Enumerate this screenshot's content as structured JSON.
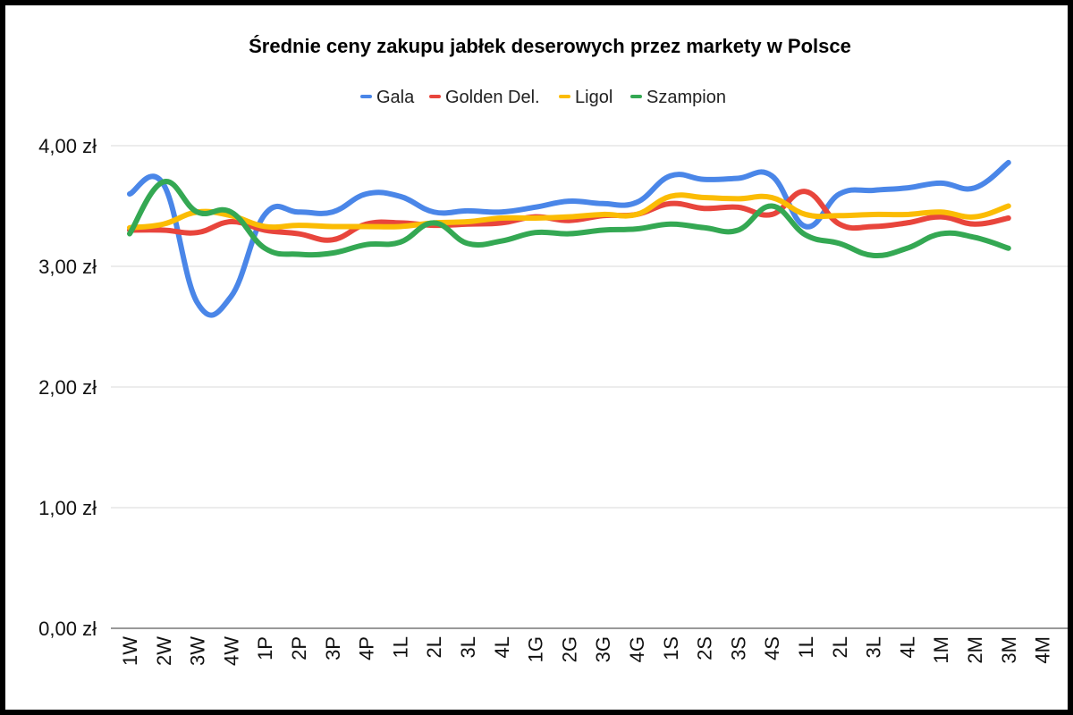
{
  "chart_data": {
    "type": "line",
    "title": "Średnie ceny zakupu jabłek deserowych przez markety w Polsce",
    "xlabel": "",
    "ylabel": "",
    "ylim": [
      0,
      4
    ],
    "yticks": [
      {
        "value": 0,
        "label": "0,00 zł"
      },
      {
        "value": 1,
        "label": "1,00 zł"
      },
      {
        "value": 2,
        "label": "2,00 zł"
      },
      {
        "value": 3,
        "label": "3,00 zł"
      },
      {
        "value": 4,
        "label": "4,00 zł"
      }
    ],
    "grid": true,
    "legend_position": "top",
    "categories": [
      "1W",
      "2W",
      "3W",
      "4W",
      "1P",
      "2P",
      "3P",
      "4P",
      "1L",
      "2L",
      "3L",
      "4L",
      "1G",
      "2G",
      "3G",
      "4G",
      "1S",
      "2S",
      "3S",
      "4S",
      "1L",
      "2L",
      "3L",
      "4L",
      "1M",
      "2M",
      "3M",
      "4M"
    ],
    "series": [
      {
        "name": "Gala",
        "color": "#4a86e8",
        "values": [
          3.6,
          3.68,
          2.7,
          2.75,
          3.43,
          3.45,
          3.45,
          3.6,
          3.58,
          3.45,
          3.46,
          3.45,
          3.49,
          3.54,
          3.52,
          3.53,
          3.75,
          3.72,
          3.73,
          3.75,
          3.33,
          3.6,
          3.63,
          3.65,
          3.69,
          3.65,
          3.86,
          null
        ]
      },
      {
        "name": "Golden Del.",
        "color": "#e8453c",
        "values": [
          3.3,
          3.3,
          3.28,
          3.37,
          3.3,
          3.27,
          3.22,
          3.35,
          3.36,
          3.34,
          3.35,
          3.36,
          3.41,
          3.38,
          3.42,
          3.43,
          3.52,
          3.48,
          3.49,
          3.43,
          3.62,
          3.35,
          3.33,
          3.36,
          3.41,
          3.35,
          3.4,
          null
        ]
      },
      {
        "name": "Ligol",
        "color": "#fbbc04",
        "values": [
          3.32,
          3.35,
          3.45,
          3.42,
          3.33,
          3.34,
          3.33,
          3.33,
          3.33,
          3.36,
          3.37,
          3.4,
          3.4,
          3.41,
          3.43,
          3.43,
          3.58,
          3.57,
          3.56,
          3.57,
          3.43,
          3.42,
          3.43,
          3.43,
          3.45,
          3.41,
          3.5,
          null
        ]
      },
      {
        "name": "Szampion",
        "color": "#34a853",
        "values": [
          3.27,
          3.7,
          3.45,
          3.45,
          3.15,
          3.1,
          3.11,
          3.18,
          3.2,
          3.36,
          3.19,
          3.21,
          3.28,
          3.27,
          3.3,
          3.31,
          3.35,
          3.32,
          3.3,
          3.5,
          3.26,
          3.19,
          3.09,
          3.15,
          3.27,
          3.24,
          3.15,
          null
        ]
      }
    ]
  }
}
